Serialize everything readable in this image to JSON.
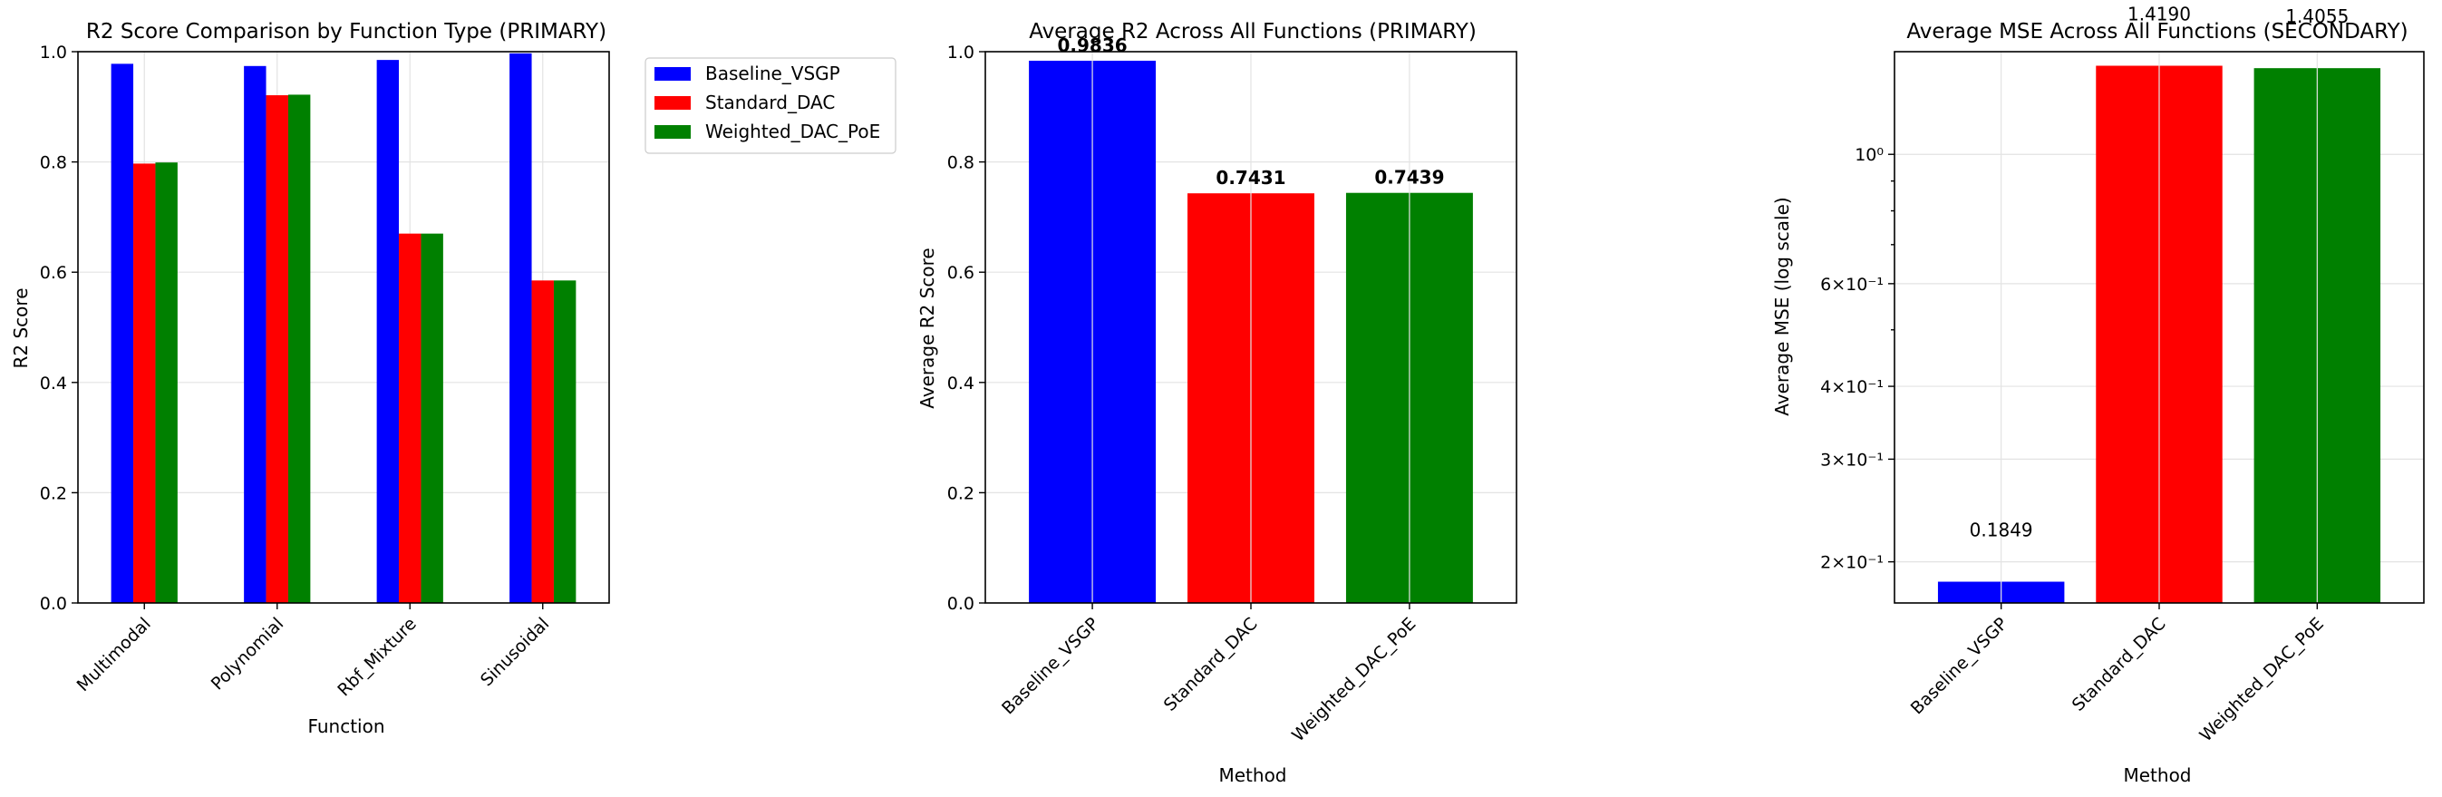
{
  "chart_data": [
    {
      "type": "bar",
      "title": "R2 Score Comparison by Function Type (PRIMARY)",
      "xlabel": "Function",
      "ylabel": "R2 Score",
      "categories": [
        "Multimodal",
        "Polynomial",
        "Rbf_Mixture",
        "Sinusoidal"
      ],
      "ylim": [
        0,
        1.0
      ],
      "yticks": [
        "0.0",
        "0.2",
        "0.4",
        "0.6",
        "0.8",
        "1.0"
      ],
      "grid": true,
      "legend": "outside-right",
      "series": [
        {
          "name": "Baseline_VSGP",
          "color": "#0000ff",
          "values": [
            0.978,
            0.974,
            0.985,
            0.997
          ]
        },
        {
          "name": "Standard_DAC",
          "color": "#ff0000",
          "values": [
            0.797,
            0.921,
            0.67,
            0.585
          ]
        },
        {
          "name": "Weighted_DAC_PoE",
          "color": "#008000",
          "values": [
            0.799,
            0.922,
            0.67,
            0.585
          ]
        }
      ]
    },
    {
      "type": "bar",
      "title": "Average R2 Across All Functions (PRIMARY)",
      "xlabel": "Method",
      "ylabel": "Average R2 Score",
      "categories": [
        "Baseline_VSGP",
        "Standard_DAC",
        "Weighted_DAC_PoE"
      ],
      "values": [
        0.9836,
        0.7431,
        0.7439
      ],
      "labels": [
        "0.9836",
        "0.7431",
        "0.7439"
      ],
      "colors": [
        "#0000ff",
        "#ff0000",
        "#008000"
      ],
      "ylim": [
        0,
        1.0
      ],
      "yticks": [
        "0.0",
        "0.2",
        "0.4",
        "0.6",
        "0.8",
        "1.0"
      ],
      "grid": true
    },
    {
      "type": "bar",
      "title": "Average MSE Across All Functions (SECONDARY)",
      "xlabel": "Method",
      "ylabel": "Average MSE (log scale)",
      "yscale": "log",
      "categories": [
        "Baseline_VSGP",
        "Standard_DAC",
        "Weighted_DAC_PoE"
      ],
      "values": [
        0.1849,
        1.419,
        1.4055
      ],
      "labels": [
        "0.1849",
        "1.4190",
        "1.4055"
      ],
      "colors": [
        "#0000ff",
        "#ff0000",
        "#008000"
      ],
      "ylim": [
        0.17,
        1.5
      ],
      "ytick_values": [
        0.2,
        0.3,
        0.4,
        0.6,
        1.0
      ],
      "yticks": [
        "2×10⁻¹",
        "3×10⁻¹",
        "4×10⁻¹",
        "6×10⁻¹",
        "10⁰"
      ],
      "grid": true
    }
  ]
}
